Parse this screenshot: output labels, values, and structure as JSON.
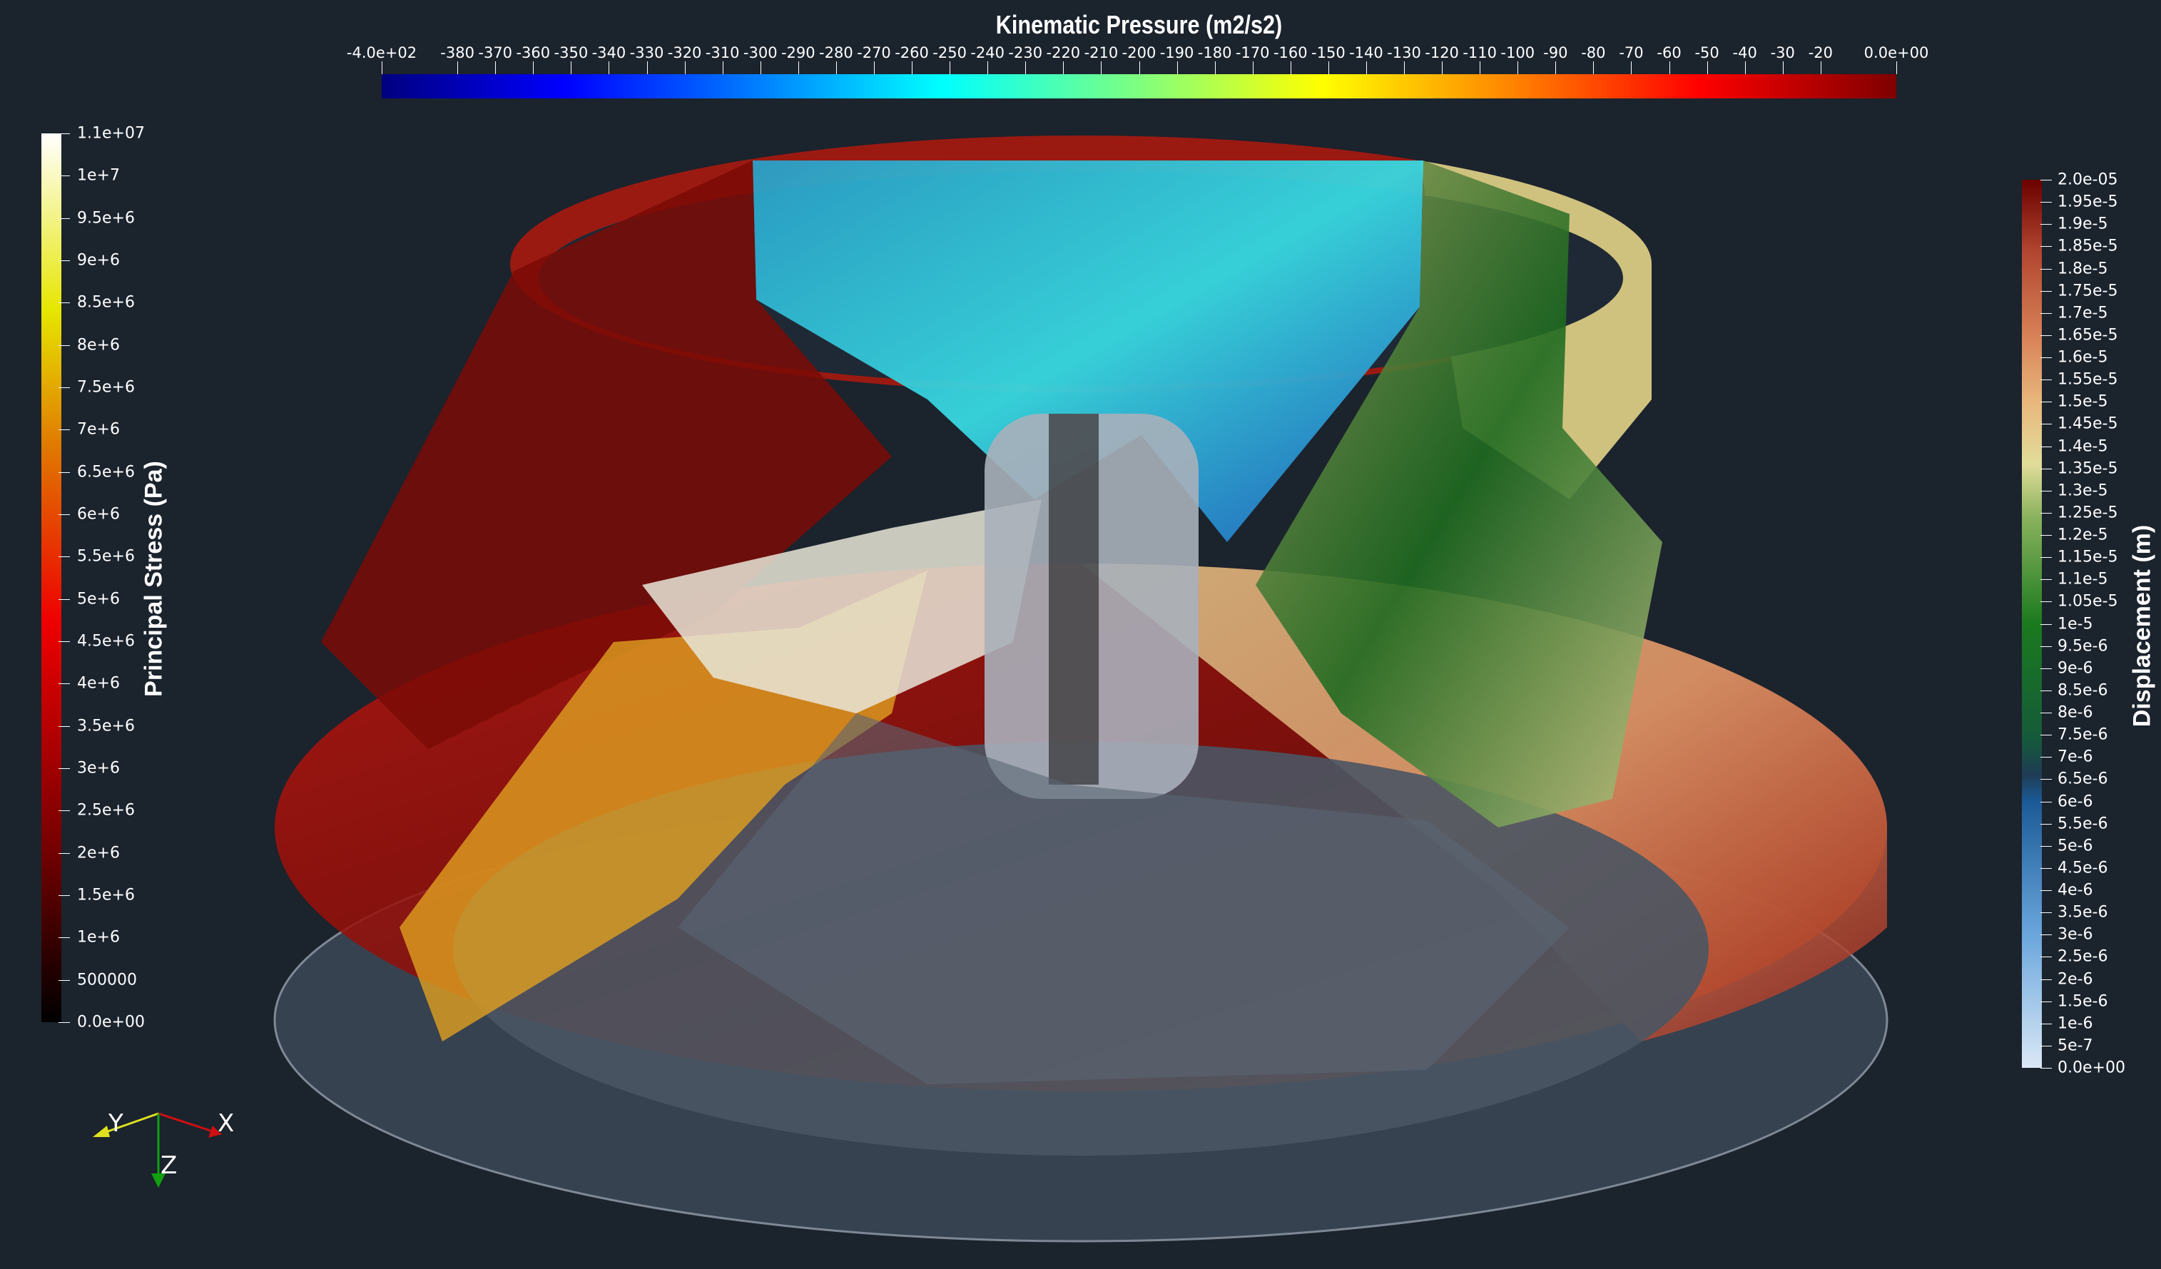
{
  "pressure_legend": {
    "title": "Kinematic Pressure (m2/s2)",
    "range": [
      -400,
      0
    ],
    "colormap": "jet",
    "labels": [
      "-4.0e+02",
      "-380",
      "-370",
      "-360",
      "-350",
      "-340",
      "-330",
      "-320",
      "-310",
      "-300",
      "-290",
      "-280",
      "-270",
      "-260",
      "-250",
      "-240",
      "-230",
      "-220",
      "-210",
      "-200",
      "-190",
      "-180",
      "-170",
      "-160",
      "-150",
      "-140",
      "-130",
      "-120",
      "-110",
      "-100",
      "-90",
      "-80",
      "-70",
      "-60",
      "-50",
      "-40",
      "-30",
      "-20",
      "0.0e+00"
    ],
    "label_values": [
      -400,
      -380,
      -370,
      -360,
      -350,
      -340,
      -330,
      -320,
      -310,
      -300,
      -290,
      -280,
      -270,
      -260,
      -250,
      -240,
      -230,
      -220,
      -210,
      -200,
      -190,
      -180,
      -170,
      -160,
      -150,
      -140,
      -130,
      -120,
      -110,
      -100,
      -90,
      -80,
      -70,
      -60,
      -50,
      -40,
      -30,
      -20,
      0
    ]
  },
  "stress_legend": {
    "title": "Principal Stress (Pa)",
    "range": [
      0,
      11000000
    ],
    "colormap": "black-body",
    "labels": [
      "1.1e+07",
      "1e+7",
      "9.5e+6",
      "9e+6",
      "8.5e+6",
      "8e+6",
      "7.5e+6",
      "7e+6",
      "6.5e+6",
      "6e+6",
      "5.5e+6",
      "5e+6",
      "4.5e+6",
      "4e+6",
      "3.5e+6",
      "3e+6",
      "2.5e+6",
      "2e+6",
      "1.5e+6",
      "1e+6",
      "500000",
      "0.0e+00"
    ]
  },
  "displacement_legend": {
    "title": "Displacement (m)",
    "range": [
      0,
      2e-05
    ],
    "labels": [
      "2.0e-05",
      "1.95e-5",
      "1.9e-5",
      "1.85e-5",
      "1.8e-5",
      "1.75e-5",
      "1.7e-5",
      "1.65e-5",
      "1.6e-5",
      "1.55e-5",
      "1.5e-5",
      "1.45e-5",
      "1.4e-5",
      "1.35e-5",
      "1.3e-5",
      "1.25e-5",
      "1.2e-5",
      "1.15e-5",
      "1.1e-5",
      "1.05e-5",
      "1e-5",
      "9.5e-6",
      "9e-6",
      "8.5e-6",
      "8e-6",
      "7.5e-6",
      "7e-6",
      "6.5e-6",
      "6e-6",
      "5.5e-6",
      "5e-6",
      "4.5e-6",
      "4e-6",
      "3.5e-6",
      "3e-6",
      "2.5e-6",
      "2e-6",
      "1.5e-6",
      "1e-6",
      "5e-7",
      "0.0e+00"
    ]
  },
  "axes": {
    "x": "X",
    "y": "Y",
    "z": "Z",
    "x_color": "#d01010",
    "y_color": "#e0e020",
    "z_color": "#10a010"
  },
  "background": "#1b232d"
}
